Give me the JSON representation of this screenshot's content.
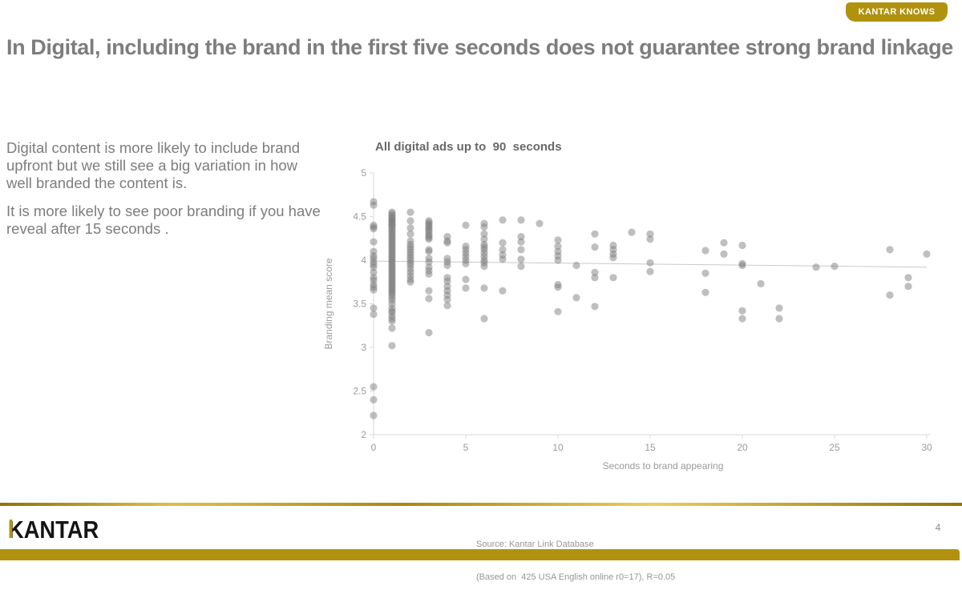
{
  "badge": {
    "label": "KANTAR KNOWS"
  },
  "title": "In Digital, including the brand in the first five seconds does not guarantee strong brand linkage",
  "commentary": {
    "para1": "Digital content is more likely to include brand upfront but we still see a big variation in how well branded the content is.",
    "para2": "It is more likely to see poor branding if you have reveal after 15 seconds ."
  },
  "chart_data": {
    "type": "scatter",
    "title": "All digital ads up to  90  seconds",
    "xlabel": "Seconds to brand appearing",
    "ylabel": "Branding mean score",
    "xlim": [
      0,
      30
    ],
    "ylim": [
      2,
      5
    ],
    "xticks": [
      0,
      5,
      10,
      15,
      20,
      25,
      30
    ],
    "yticks": [
      2,
      2.5,
      3,
      3.5,
      4,
      4.5,
      5
    ],
    "grid": false,
    "legend": "none",
    "point_color": "#7f7f7f",
    "trendline": {
      "x0": 0,
      "y0": 3.99,
      "x1": 30,
      "y1": 3.92,
      "note": "R=0.05"
    },
    "points": [
      [
        0,
        4.67
      ],
      [
        0,
        4.63
      ],
      [
        0,
        4.4
      ],
      [
        0,
        4.38
      ],
      [
        0,
        4.36
      ],
      [
        0,
        4.21
      ],
      [
        0,
        4.1
      ],
      [
        0,
        4.05
      ],
      [
        0,
        4.02
      ],
      [
        0,
        3.98
      ],
      [
        0,
        3.95
      ],
      [
        0,
        3.92
      ],
      [
        0,
        3.86
      ],
      [
        0,
        3.8
      ],
      [
        0,
        3.77
      ],
      [
        0,
        3.72
      ],
      [
        0,
        3.69
      ],
      [
        0,
        3.66
      ],
      [
        0,
        3.45
      ],
      [
        0,
        3.38
      ],
      [
        0,
        2.55
      ],
      [
        0,
        2.4
      ],
      [
        0,
        2.22
      ],
      [
        1,
        4.55
      ],
      [
        1,
        4.53
      ],
      [
        1,
        4.51
      ],
      [
        1,
        4.49
      ],
      [
        1,
        4.48
      ],
      [
        1,
        4.46
      ],
      [
        1,
        4.45
      ],
      [
        1,
        4.44
      ],
      [
        1,
        4.42
      ],
      [
        1,
        4.41
      ],
      [
        1,
        4.4
      ],
      [
        1,
        4.38
      ],
      [
        1,
        4.36
      ],
      [
        1,
        4.34
      ],
      [
        1,
        4.32
      ],
      [
        1,
        4.3
      ],
      [
        1,
        4.28
      ],
      [
        1,
        4.26
      ],
      [
        1,
        4.24
      ],
      [
        1,
        4.22
      ],
      [
        1,
        4.2
      ],
      [
        1,
        4.18
      ],
      [
        1,
        4.16
      ],
      [
        1,
        4.14
      ],
      [
        1,
        4.12
      ],
      [
        1,
        4.1
      ],
      [
        1,
        4.08
      ],
      [
        1,
        4.06
      ],
      [
        1,
        4.04
      ],
      [
        1,
        4.02
      ],
      [
        1,
        4.0
      ],
      [
        1,
        3.98
      ],
      [
        1,
        3.96
      ],
      [
        1,
        3.94
      ],
      [
        1,
        3.92
      ],
      [
        1,
        3.9
      ],
      [
        1,
        3.88
      ],
      [
        1,
        3.86
      ],
      [
        1,
        3.84
      ],
      [
        1,
        3.82
      ],
      [
        1,
        3.8
      ],
      [
        1,
        3.78
      ],
      [
        1,
        3.76
      ],
      [
        1,
        3.74
      ],
      [
        1,
        3.72
      ],
      [
        1,
        3.7
      ],
      [
        1,
        3.68
      ],
      [
        1,
        3.66
      ],
      [
        1,
        3.64
      ],
      [
        1,
        3.62
      ],
      [
        1,
        3.6
      ],
      [
        1,
        3.57
      ],
      [
        1,
        3.54
      ],
      [
        1,
        3.5
      ],
      [
        1,
        3.45
      ],
      [
        1,
        3.42
      ],
      [
        1,
        3.4
      ],
      [
        1,
        3.36
      ],
      [
        1,
        3.33
      ],
      [
        1,
        3.3
      ],
      [
        1,
        3.22
      ],
      [
        1,
        3.02
      ],
      [
        2,
        4.55
      ],
      [
        2,
        4.45
      ],
      [
        2,
        4.37
      ],
      [
        2,
        4.3
      ],
      [
        2,
        4.22
      ],
      [
        2,
        4.18
      ],
      [
        2,
        4.15
      ],
      [
        2,
        4.12
      ],
      [
        2,
        4.09
      ],
      [
        2,
        4.06
      ],
      [
        2,
        4.03
      ],
      [
        2,
        4.0
      ],
      [
        2,
        3.97
      ],
      [
        2,
        3.94
      ],
      [
        2,
        3.9
      ],
      [
        2,
        3.86
      ],
      [
        2,
        3.82
      ],
      [
        2,
        3.78
      ],
      [
        2,
        3.75
      ],
      [
        3,
        4.45
      ],
      [
        3,
        4.43
      ],
      [
        3,
        4.41
      ],
      [
        3,
        4.39
      ],
      [
        3,
        4.37
      ],
      [
        3,
        4.35
      ],
      [
        3,
        4.33
      ],
      [
        3,
        4.3
      ],
      [
        3,
        4.28
      ],
      [
        3,
        4.26
      ],
      [
        3,
        4.24
      ],
      [
        3,
        4.12
      ],
      [
        3,
        4.1
      ],
      [
        3,
        4.02
      ],
      [
        3,
        3.98
      ],
      [
        3,
        3.92
      ],
      [
        3,
        3.88
      ],
      [
        3,
        3.84
      ],
      [
        3,
        3.65
      ],
      [
        3,
        3.56
      ],
      [
        3,
        3.17
      ],
      [
        4,
        4.27
      ],
      [
        4,
        4.22
      ],
      [
        4,
        4.2
      ],
      [
        4,
        4.02
      ],
      [
        4,
        3.98
      ],
      [
        4,
        3.94
      ],
      [
        4,
        3.8
      ],
      [
        4,
        3.76
      ],
      [
        4,
        3.7
      ],
      [
        4,
        3.65
      ],
      [
        4,
        3.6
      ],
      [
        4,
        3.55
      ],
      [
        4,
        3.48
      ],
      [
        5,
        4.4
      ],
      [
        5,
        4.16
      ],
      [
        5,
        4.12
      ],
      [
        5,
        4.08
      ],
      [
        5,
        4.04
      ],
      [
        5,
        4.0
      ],
      [
        5,
        3.96
      ],
      [
        5,
        3.78
      ],
      [
        5,
        3.68
      ],
      [
        6,
        4.42
      ],
      [
        6,
        4.38
      ],
      [
        6,
        4.3
      ],
      [
        6,
        4.24
      ],
      [
        6,
        4.18
      ],
      [
        6,
        4.15
      ],
      [
        6,
        4.12
      ],
      [
        6,
        4.08
      ],
      [
        6,
        4.04
      ],
      [
        6,
        4.0
      ],
      [
        6,
        3.97
      ],
      [
        6,
        3.93
      ],
      [
        6,
        3.68
      ],
      [
        6,
        3.33
      ],
      [
        7,
        4.46
      ],
      [
        7,
        4.2
      ],
      [
        7,
        4.12
      ],
      [
        7,
        4.06
      ],
      [
        7,
        4.01
      ],
      [
        7,
        3.65
      ],
      [
        8,
        4.46
      ],
      [
        8,
        4.27
      ],
      [
        8,
        4.21
      ],
      [
        8,
        4.12
      ],
      [
        8,
        4.01
      ],
      [
        8,
        3.93
      ],
      [
        9,
        4.42
      ],
      [
        10,
        4.23
      ],
      [
        10,
        4.16
      ],
      [
        10,
        4.1
      ],
      [
        10,
        4.05
      ],
      [
        10,
        4.0
      ],
      [
        10,
        3.72
      ],
      [
        10,
        3.69
      ],
      [
        10,
        3.41
      ],
      [
        11,
        3.94
      ],
      [
        11,
        3.57
      ],
      [
        12,
        4.3
      ],
      [
        12,
        4.15
      ],
      [
        12,
        3.86
      ],
      [
        12,
        3.8
      ],
      [
        12,
        3.47
      ],
      [
        13,
        4.17
      ],
      [
        13,
        4.12
      ],
      [
        13,
        4.07
      ],
      [
        13,
        4.03
      ],
      [
        13,
        3.8
      ],
      [
        14,
        4.32
      ],
      [
        15,
        4.3
      ],
      [
        15,
        4.24
      ],
      [
        15,
        3.97
      ],
      [
        15,
        3.87
      ],
      [
        18,
        4.11
      ],
      [
        18,
        3.85
      ],
      [
        18,
        3.63
      ],
      [
        19,
        4.2
      ],
      [
        19,
        4.07
      ],
      [
        20,
        4.17
      ],
      [
        20,
        3.96
      ],
      [
        20,
        3.94
      ],
      [
        20,
        3.42
      ],
      [
        20,
        3.33
      ],
      [
        21,
        3.73
      ],
      [
        22,
        3.45
      ],
      [
        22,
        3.33
      ],
      [
        24,
        3.92
      ],
      [
        25,
        3.93
      ],
      [
        28,
        4.12
      ],
      [
        28,
        3.6
      ],
      [
        29,
        3.8
      ],
      [
        29,
        3.7
      ],
      [
        30,
        4.07
      ]
    ]
  },
  "footer": {
    "logo": "KANTAR",
    "source_line1": "Source: Kantar Link Database",
    "source_line2": "(Based on  425 USA English online r0=17), R=0.05",
    "page_number": "4"
  },
  "colors": {
    "accent_gold": "#B0920F",
    "title_gray": "#7d7d7d",
    "point_gray": "#7f7f7f"
  }
}
